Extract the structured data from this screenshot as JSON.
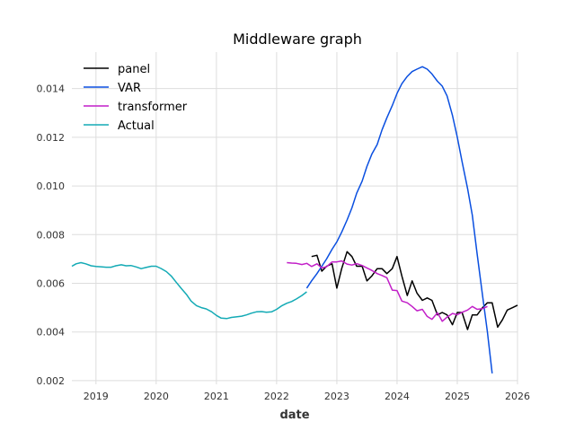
{
  "chart_data": {
    "type": "line",
    "title": "Middleware graph",
    "xlabel": "date",
    "ylabel": "",
    "xlim": [
      2018.6,
      2026.0
    ],
    "ylim": [
      0.00185,
      0.0155
    ],
    "x_ticks": [
      2019,
      2020,
      2021,
      2022,
      2023,
      2024,
      2025,
      2026
    ],
    "x_tick_labels": [
      "2019",
      "2020",
      "2021",
      "2022",
      "2023",
      "2024",
      "2025",
      "2026"
    ],
    "y_ticks": [
      0.002,
      0.004,
      0.006,
      0.008,
      0.01,
      0.012,
      0.014
    ],
    "y_tick_labels": [
      "0.002",
      "0.004",
      "0.006",
      "0.008",
      "0.010",
      "0.012",
      "0.014"
    ],
    "grid": true,
    "legend_position": "upper-left",
    "series": [
      {
        "name": "panel",
        "color": "#000000",
        "x": [
          2022.58,
          2022.67,
          2022.75,
          2022.83,
          2022.92,
          2023.0,
          2023.08,
          2023.17,
          2023.25,
          2023.33,
          2023.42,
          2023.5,
          2023.58,
          2023.67,
          2023.75,
          2023.83,
          2023.92,
          2024.0,
          2024.08,
          2024.17,
          2024.25,
          2024.33,
          2024.42,
          2024.5,
          2024.58,
          2024.67,
          2024.75,
          2024.83,
          2024.92,
          2025.0,
          2025.08,
          2025.17,
          2025.25,
          2025.33,
          2025.42,
          2025.5,
          2025.58,
          2025.67,
          2025.75,
          2025.83,
          2025.92,
          2026.0
        ],
        "y": [
          0.0071,
          0.00715,
          0.0065,
          0.0067,
          0.0068,
          0.0058,
          0.0066,
          0.0073,
          0.0071,
          0.0067,
          0.0067,
          0.0061,
          0.0063,
          0.0066,
          0.0066,
          0.0064,
          0.0066,
          0.0071,
          0.0063,
          0.0055,
          0.0061,
          0.0056,
          0.0053,
          0.0054,
          0.0053,
          0.0047,
          0.0048,
          0.0047,
          0.0043,
          0.0048,
          0.0048,
          0.0041,
          0.0047,
          0.0047,
          0.005,
          0.0052,
          0.0052,
          0.0042,
          0.0045,
          0.0049,
          0.005,
          0.0051
        ]
      },
      {
        "name": "VAR",
        "color": "#0a4fe0",
        "x": [
          2022.5,
          2022.58,
          2022.67,
          2022.75,
          2022.83,
          2022.92,
          2023.0,
          2023.08,
          2023.17,
          2023.25,
          2023.33,
          2023.42,
          2023.5,
          2023.58,
          2023.67,
          2023.75,
          2023.83,
          2023.92,
          2024.0,
          2024.08,
          2024.17,
          2024.25,
          2024.33,
          2024.42,
          2024.5,
          2024.58,
          2024.67,
          2024.75,
          2024.83,
          2024.92,
          2025.0,
          2025.08,
          2025.17,
          2025.25,
          2025.33,
          2025.42,
          2025.5,
          2025.58
        ],
        "y": [
          0.0058,
          0.0061,
          0.0064,
          0.0067,
          0.007,
          0.0074,
          0.0077,
          0.0081,
          0.0086,
          0.0091,
          0.0097,
          0.0102,
          0.0108,
          0.0113,
          0.0117,
          0.0123,
          0.0128,
          0.0133,
          0.0138,
          0.0142,
          0.0145,
          0.0147,
          0.0148,
          0.0149,
          0.0148,
          0.0146,
          0.0143,
          0.0141,
          0.0137,
          0.0129,
          0.012,
          0.011,
          0.0099,
          0.0088,
          0.0072,
          0.0055,
          0.004,
          0.0023
        ]
      },
      {
        "name": "transformer",
        "color": "#c21fc8",
        "x": [
          2022.17,
          2022.25,
          2022.33,
          2022.42,
          2022.5,
          2022.58,
          2022.67,
          2022.75,
          2022.83,
          2022.92,
          2023.0,
          2023.08,
          2023.17,
          2023.25,
          2023.33,
          2023.42,
          2023.5,
          2023.58,
          2023.67,
          2023.75,
          2023.83,
          2023.92,
          2024.0,
          2024.08,
          2024.17,
          2024.25,
          2024.33,
          2024.42,
          2024.5,
          2024.58,
          2024.67,
          2024.75,
          2024.83,
          2024.92,
          2025.0,
          2025.08,
          2025.17,
          2025.25,
          2025.33,
          2025.42,
          2025.5
        ],
        "y": [
          0.00685,
          0.00683,
          0.00682,
          0.00677,
          0.00682,
          0.00669,
          0.0068,
          0.00663,
          0.00668,
          0.00688,
          0.00688,
          0.00692,
          0.00679,
          0.00675,
          0.00681,
          0.00673,
          0.00663,
          0.00653,
          0.0064,
          0.00632,
          0.00623,
          0.00572,
          0.0057,
          0.00527,
          0.0052,
          0.00505,
          0.00487,
          0.00493,
          0.00464,
          0.00452,
          0.00479,
          0.00444,
          0.00461,
          0.00476,
          0.00471,
          0.00481,
          0.0049,
          0.00505,
          0.00493,
          0.00496,
          0.00505
        ]
      },
      {
        "name": "Actual",
        "color": "#13aab5",
        "x": [
          2018.6,
          2018.67,
          2018.75,
          2018.83,
          2018.92,
          2019.0,
          2019.08,
          2019.17,
          2019.25,
          2019.33,
          2019.42,
          2019.5,
          2019.58,
          2019.67,
          2019.75,
          2019.83,
          2019.92,
          2020.0,
          2020.08,
          2020.17,
          2020.25,
          2020.33,
          2020.42,
          2020.5,
          2020.58,
          2020.67,
          2020.75,
          2020.83,
          2020.92,
          2021.0,
          2021.08,
          2021.17,
          2021.25,
          2021.33,
          2021.42,
          2021.5,
          2021.58,
          2021.67,
          2021.75,
          2021.83,
          2021.92,
          2022.0,
          2022.08,
          2022.17,
          2022.25,
          2022.33,
          2022.42,
          2022.5
        ],
        "y": [
          0.0067,
          0.0068,
          0.00685,
          0.0068,
          0.00672,
          0.00669,
          0.00668,
          0.00666,
          0.00666,
          0.00672,
          0.00676,
          0.00672,
          0.00673,
          0.00667,
          0.0066,
          0.00665,
          0.0067,
          0.0067,
          0.00661,
          0.00648,
          0.0063,
          0.00605,
          0.00578,
          0.00555,
          0.00527,
          0.00508,
          0.005,
          0.00495,
          0.00483,
          0.00468,
          0.00457,
          0.00455,
          0.0046,
          0.00462,
          0.00465,
          0.0047,
          0.00477,
          0.00483,
          0.00484,
          0.00481,
          0.00483,
          0.00493,
          0.00507,
          0.00518,
          0.00525,
          0.00536,
          0.0055,
          0.00565
        ]
      }
    ]
  }
}
